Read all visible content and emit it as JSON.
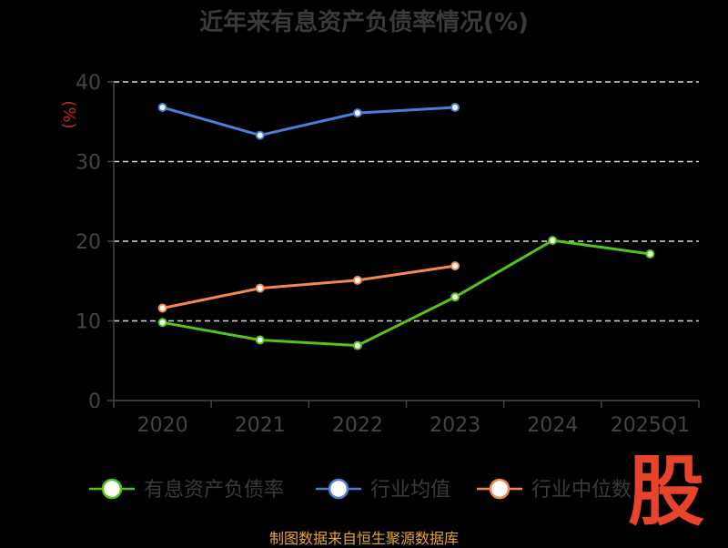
{
  "chart_data": {
    "type": "line",
    "title": "近年来有息资产负债率情况(%)",
    "ylabel": "(%)",
    "categories": [
      "2020",
      "2021",
      "2022",
      "2023",
      "2024",
      "2025Q1"
    ],
    "ylim": [
      0,
      40
    ],
    "yticks": [
      0,
      10,
      20,
      30,
      40
    ],
    "grid": "horizontal-dashed",
    "legend_position": "bottom",
    "series": [
      {
        "name": "有息资产负债率",
        "color": "#52c41a",
        "values": [
          9.8,
          7.6,
          6.9,
          13.0,
          20.1,
          18.4
        ]
      },
      {
        "name": "行业均值",
        "color": "#4a7fd9",
        "values": [
          36.8,
          33.3,
          36.1,
          36.8,
          null,
          null
        ]
      },
      {
        "name": "行业中位数",
        "color": "#f5874f",
        "values": [
          11.6,
          14.1,
          15.1,
          16.9,
          null,
          null
        ]
      }
    ]
  },
  "footer": "制图数据来自恒生聚源数据库",
  "stamp": "股"
}
